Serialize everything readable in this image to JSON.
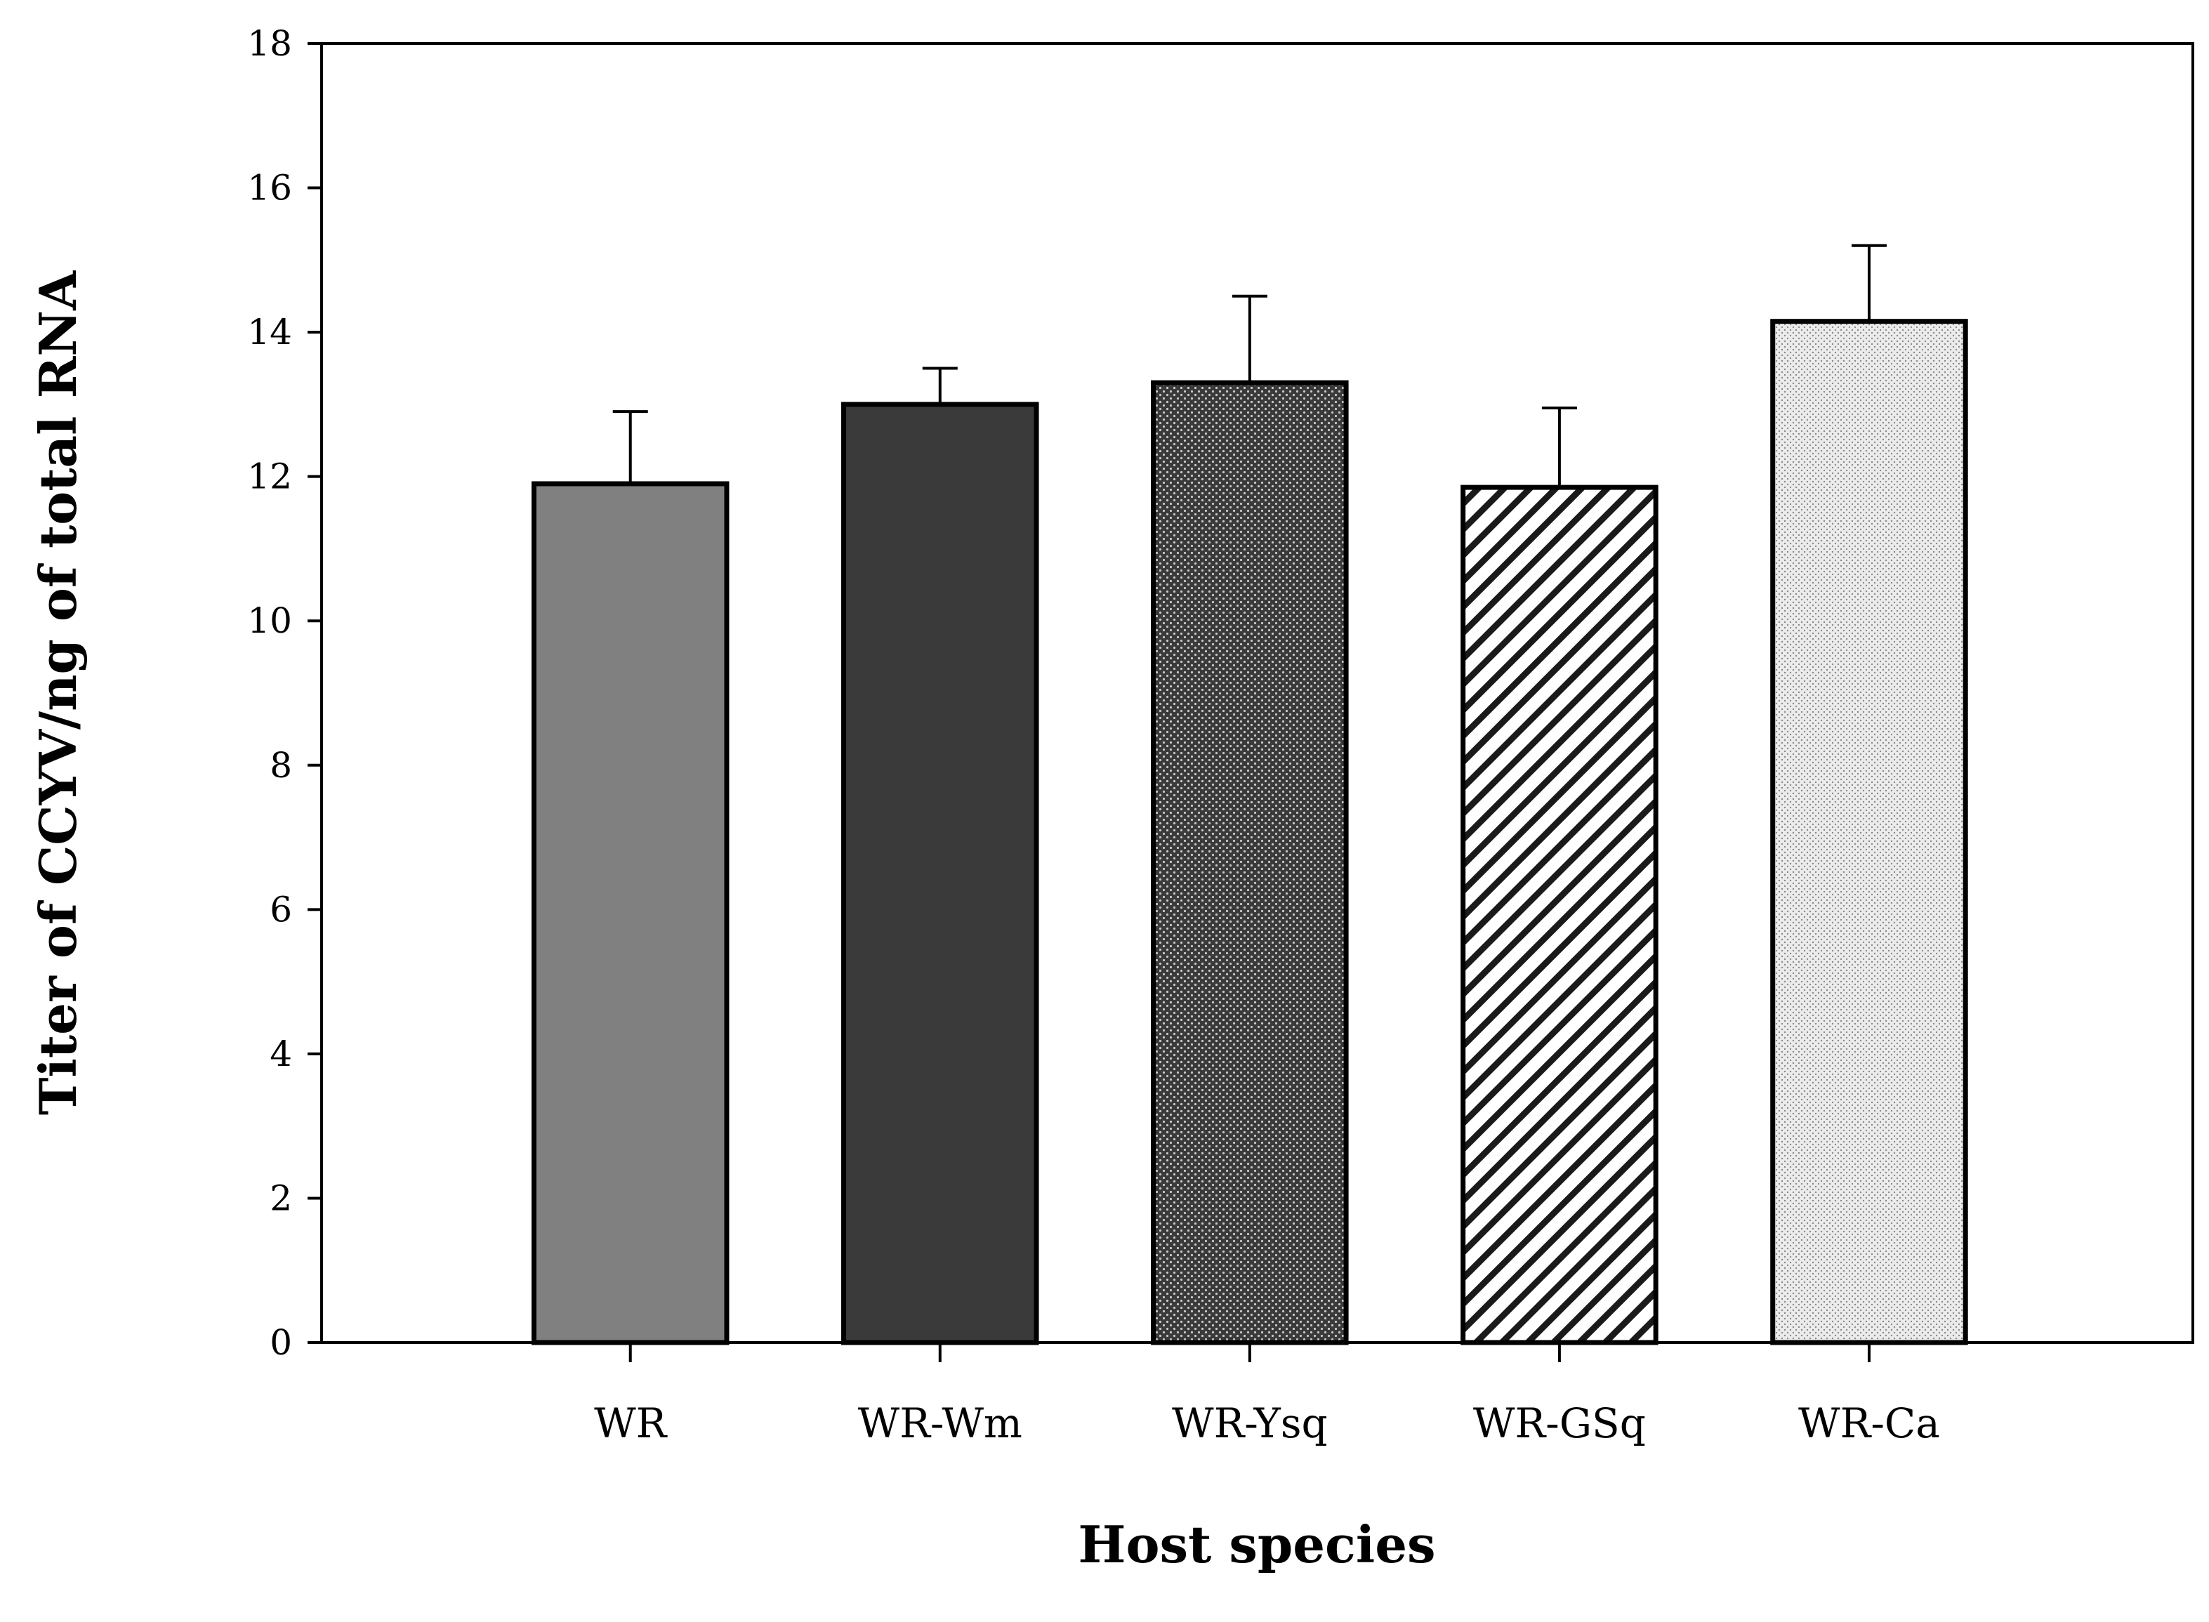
{
  "chart_data": {
    "type": "bar",
    "title": "",
    "xlabel": "Host species",
    "ylabel": "Titer of CCYV/ng of total RNA",
    "categories": [
      "WR",
      "WR-Wm",
      "WR-Ysq",
      "WR-GSq",
      "WR-Ca"
    ],
    "values": [
      11.9,
      13.0,
      13.3,
      11.85,
      14.15
    ],
    "errors": [
      1.0,
      0.5,
      1.2,
      1.1,
      1.05
    ],
    "ylim": [
      0,
      18
    ],
    "yticks": [
      0,
      2,
      4,
      6,
      8,
      10,
      12,
      14,
      16,
      18
    ],
    "grid": false,
    "bar_styles": [
      {
        "pattern": "solid",
        "fill": "#808080"
      },
      {
        "pattern": "solid",
        "fill": "#3a3a3a"
      },
      {
        "pattern": "dense-dots",
        "fill": "#3a3a3a"
      },
      {
        "pattern": "diagonal-hatch",
        "fill": "#ffffff"
      },
      {
        "pattern": "light-dots",
        "fill": "#ececec"
      }
    ]
  }
}
